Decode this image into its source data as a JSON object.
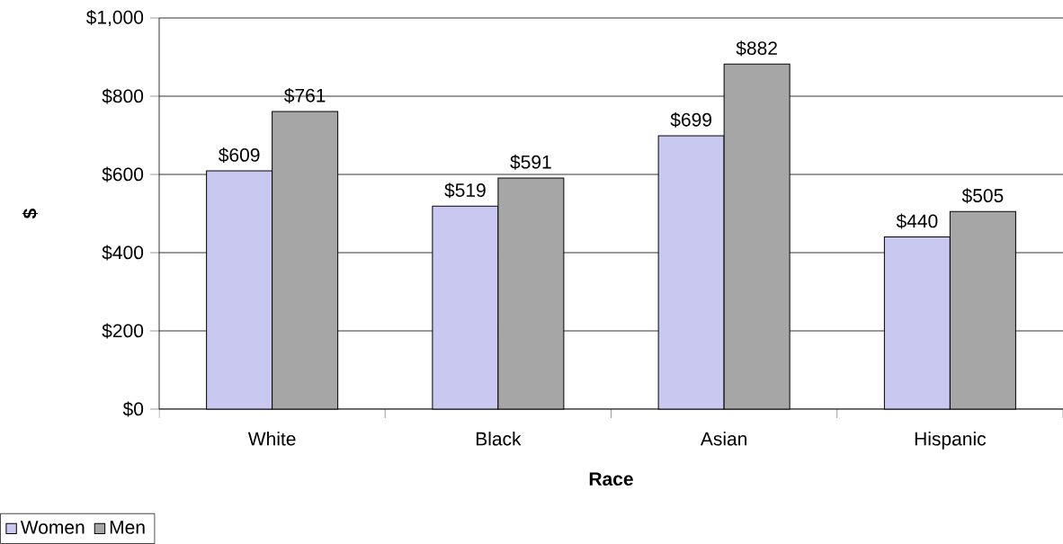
{
  "chart_data": {
    "type": "bar",
    "xlabel": "Race",
    "ylabel": "$",
    "categories": [
      "White",
      "Black",
      "Asian",
      "Hispanic"
    ],
    "series": [
      {
        "name": "Women",
        "color": "#c8c8f0",
        "values": [
          609,
          519,
          699,
          440
        ],
        "value_labels": [
          "$609",
          "$519",
          "$699",
          "$440"
        ]
      },
      {
        "name": "Men",
        "color": "#a6a6a6",
        "values": [
          761,
          591,
          882,
          505
        ],
        "value_labels": [
          "$761",
          "$591",
          "$882",
          "$505"
        ]
      }
    ],
    "ylim": [
      0,
      1000
    ],
    "yticks": [
      {
        "value": 0,
        "label": "$0"
      },
      {
        "value": 200,
        "label": "$200"
      },
      {
        "value": 400,
        "label": "$400"
      },
      {
        "value": 600,
        "label": "$600"
      },
      {
        "value": 800,
        "label": "$800"
      },
      {
        "value": 1000,
        "label": "$1,000"
      }
    ],
    "grid": "y",
    "legend": "bottom left"
  }
}
